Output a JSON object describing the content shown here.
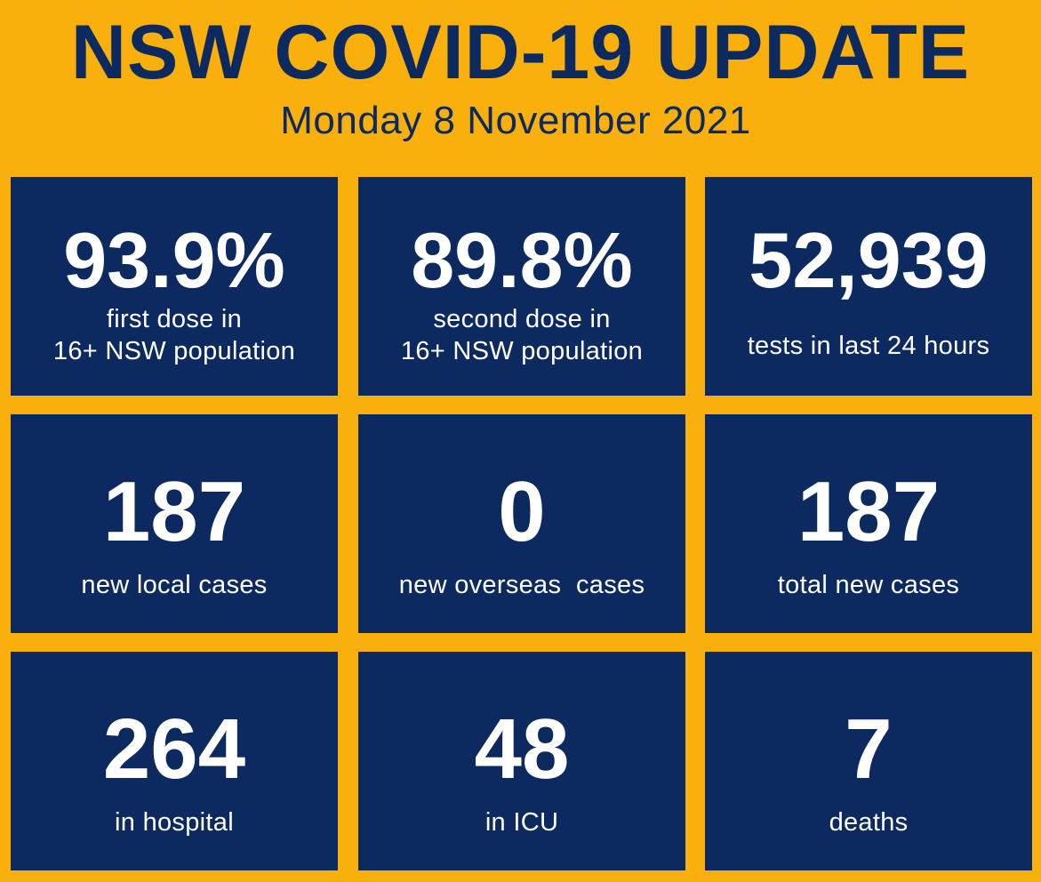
{
  "header": {
    "title": "NSW COVID-19 UPDATE",
    "date": "Monday 8 November 2021"
  },
  "colors": {
    "background": "#F9AF0C",
    "tile": "#0C2A60",
    "text_on_tile": "#FFFFFF",
    "title_text": "#0C2A60"
  },
  "stats": {
    "first_dose": {
      "value": "93.9%",
      "label_line1": "first dose in",
      "label_line2": "16+ NSW population"
    },
    "second_dose": {
      "value": "89.8%",
      "label_line1": "second dose in",
      "label_line2": "16+ NSW population"
    },
    "tests": {
      "value": "52,939",
      "label_line1": "tests in last 24 hours"
    },
    "local_cases": {
      "value": "187",
      "label_line1": "new local cases"
    },
    "overseas_cases": {
      "value": "0",
      "label_line1": "new overseas  cases"
    },
    "total_cases": {
      "value": "187",
      "label_line1": "total new cases"
    },
    "hospital": {
      "value": "264",
      "label_line1": "in hospital"
    },
    "icu": {
      "value": "48",
      "label_line1": "in ICU"
    },
    "deaths": {
      "value": "7",
      "label_line1": "deaths"
    }
  }
}
